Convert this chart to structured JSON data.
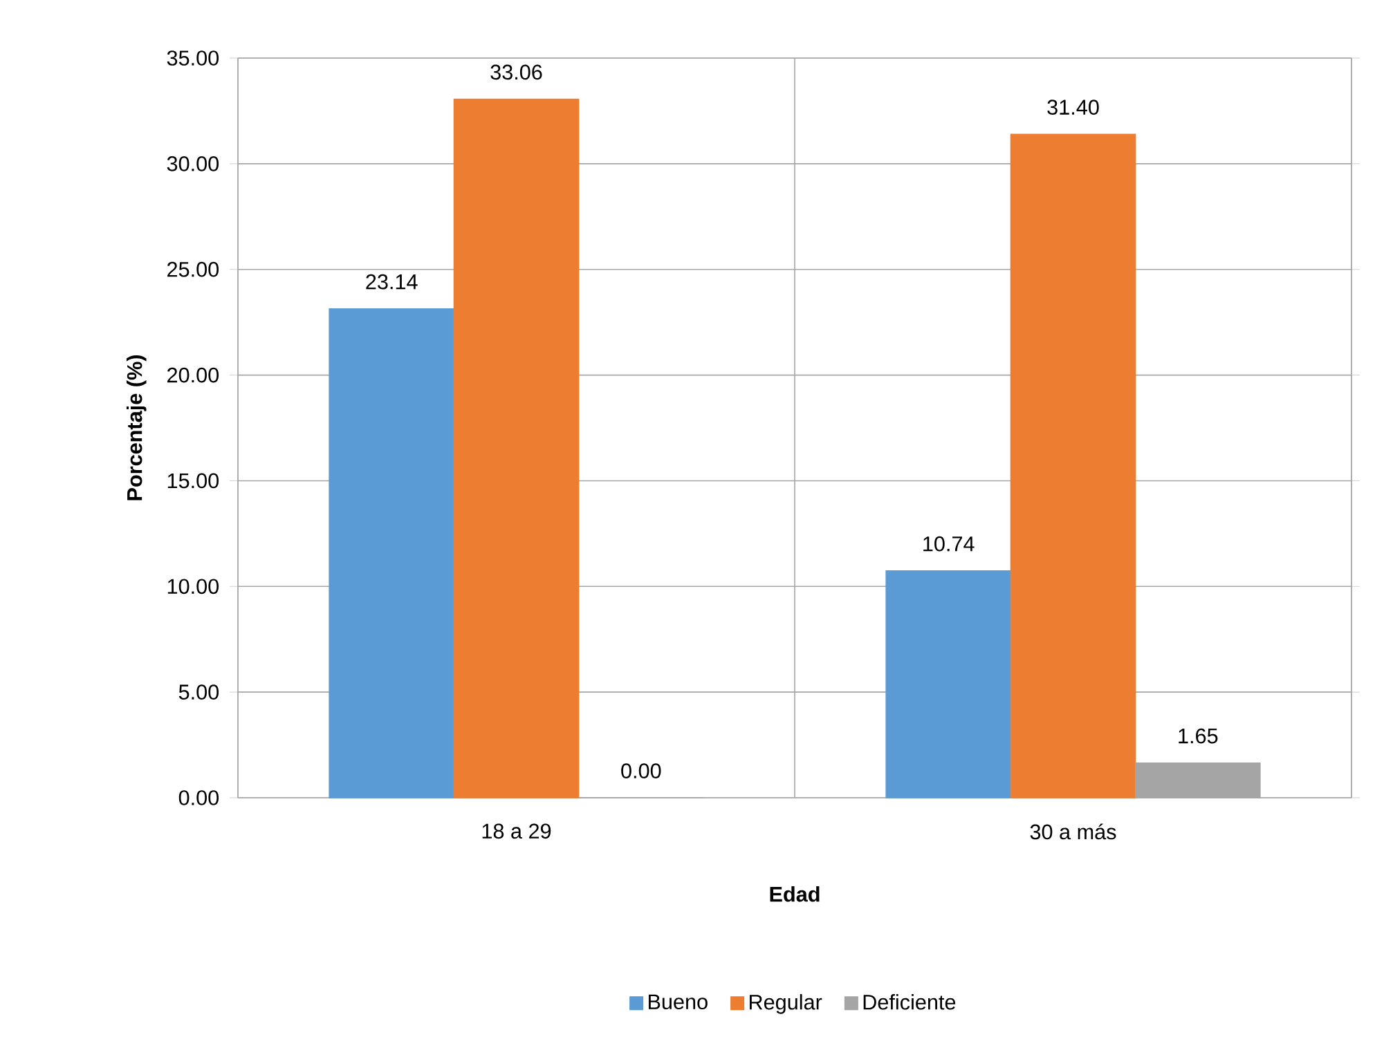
{
  "chart_data": {
    "type": "bar",
    "xlabel": "Edad",
    "ylabel": "Porcentaje (%)",
    "categories": [
      "18 a 29",
      "30 a más"
    ],
    "series": [
      {
        "name": "Bueno",
        "color": "#5b9bd5",
        "values": [
          23.14,
          10.74
        ],
        "value_labels": [
          "23.14",
          "10.74"
        ]
      },
      {
        "name": "Regular",
        "color": "#ed7d31",
        "values": [
          33.06,
          31.4
        ],
        "value_labels": [
          "33.06",
          "31.40"
        ]
      },
      {
        "name": "Deficiente",
        "color": "#a5a5a5",
        "values": [
          0.0,
          1.65
        ],
        "value_labels": [
          "0.00",
          "1.65"
        ]
      }
    ],
    "ylim": [
      0,
      35
    ],
    "yticks": [
      {
        "value": 0,
        "label": "0.00"
      },
      {
        "value": 5,
        "label": "5.00"
      },
      {
        "value": 10,
        "label": "10.00"
      },
      {
        "value": 15,
        "label": "15.00"
      },
      {
        "value": 20,
        "label": "20.00"
      },
      {
        "value": 25,
        "label": "25.00"
      },
      {
        "value": 30,
        "label": "30.00"
      },
      {
        "value": 35,
        "label": "35.00"
      }
    ],
    "grid": true,
    "legend": "bottom"
  }
}
